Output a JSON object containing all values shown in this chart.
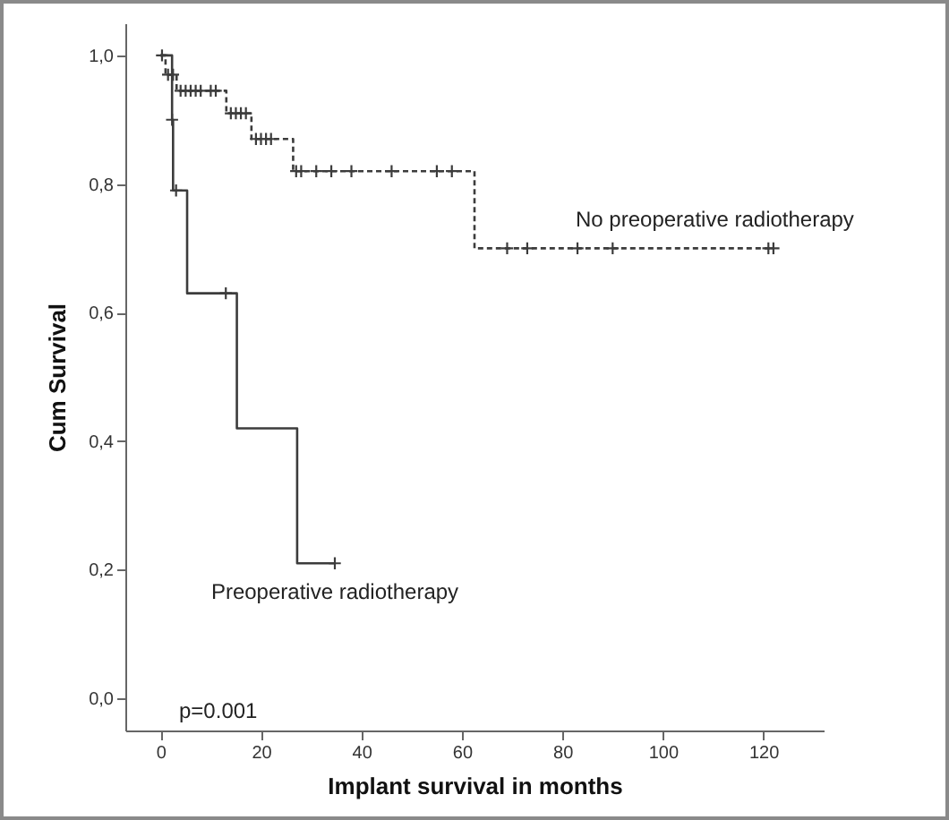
{
  "chart_data": {
    "type": "step",
    "xlabel": "Implant survival in months",
    "ylabel": "Cum Survival",
    "annotations": [
      "p=0.001"
    ],
    "xlim": [
      -7,
      132
    ],
    "ylim": [
      -0.05,
      1.05
    ],
    "xticks": [
      0,
      20,
      40,
      60,
      80,
      100,
      120
    ],
    "yticks": [
      {
        "value": 0,
        "label": "0,0"
      },
      {
        "value": 0.2,
        "label": "0,2"
      },
      {
        "value": 0.4,
        "label": "0,4"
      },
      {
        "value": 0.6,
        "label": "0,6"
      },
      {
        "value": 0.8,
        "label": "0,8"
      },
      {
        "value": 1,
        "label": "1,0"
      }
    ],
    "series": [
      {
        "name": "No preoperative radiotherapy",
        "color": "#3c3c3c",
        "line_style": "dashed",
        "x": [
          0,
          1,
          3.2,
          13.1,
          18.1,
          26.4,
          62.5,
          122
        ],
        "values": [
          1.0,
          0.97,
          0.945,
          0.91,
          0.87,
          0.82,
          0.7,
          0.7
        ]
      },
      {
        "name": "Preoperative radiotherapy",
        "color": "#3c3c3c",
        "line_style": "solid",
        "x": [
          0,
          2.3,
          2.5,
          5.3,
          15.2,
          27.2,
          34.7
        ],
        "values": [
          1.0,
          0.9,
          0.79,
          0.63,
          0.42,
          0.21,
          0.21
        ]
      },
      {
        "type": "scatter",
        "color": "#3c3c3c",
        "marker": "cross",
        "x": [
          0.3,
          1.5,
          2.5,
          4,
          5,
          6,
          7,
          8,
          10,
          11,
          14,
          15,
          16,
          17,
          19,
          20,
          21,
          22,
          27,
          28,
          31,
          34,
          38,
          46,
          55,
          58,
          69,
          73,
          83,
          90,
          121,
          122
        ],
        "values": [
          1.0,
          0.97,
          0.97,
          0.945,
          0.945,
          0.945,
          0.945,
          0.945,
          0.945,
          0.945,
          0.91,
          0.91,
          0.91,
          0.91,
          0.87,
          0.87,
          0.87,
          0.87,
          0.82,
          0.82,
          0.82,
          0.82,
          0.82,
          0.82,
          0.82,
          0.82,
          0.7,
          0.7,
          0.7,
          0.7,
          0.7,
          0.7
        ]
      },
      {
        "type": "scatter",
        "color": "#3c3c3c",
        "marker": "cross",
        "x": [
          2.3,
          3.1,
          13,
          34.7
        ],
        "values": [
          0.9,
          0.79,
          0.63,
          0.21
        ]
      }
    ]
  }
}
